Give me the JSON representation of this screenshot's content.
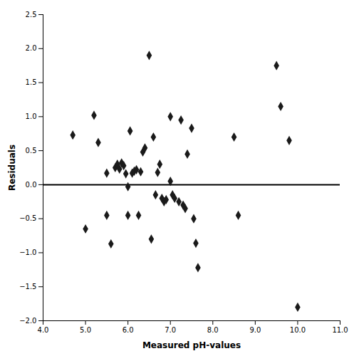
{
  "chart_data": {
    "type": "scatter",
    "x": [
      4.7,
      5.0,
      5.2,
      5.3,
      5.5,
      5.5,
      5.6,
      5.7,
      5.75,
      5.8,
      5.85,
      5.9,
      5.95,
      6.0,
      6.0,
      6.05,
      6.1,
      6.15,
      6.2,
      6.25,
      6.3,
      6.35,
      6.4,
      6.5,
      6.55,
      6.6,
      6.65,
      6.7,
      6.75,
      6.8,
      6.85,
      6.9,
      7.0,
      7.0,
      7.05,
      7.1,
      7.2,
      7.25,
      7.3,
      7.35,
      7.4,
      7.5,
      7.55,
      7.6,
      7.65,
      8.5,
      8.6,
      9.5,
      9.6,
      9.8,
      10.0
    ],
    "values": [
      0.73,
      -0.65,
      1.02,
      0.62,
      0.17,
      -0.45,
      -0.87,
      0.25,
      0.3,
      0.23,
      0.32,
      0.28,
      0.16,
      -0.03,
      -0.45,
      0.79,
      0.17,
      0.2,
      0.22,
      -0.45,
      0.19,
      0.48,
      0.54,
      1.9,
      -0.8,
      0.7,
      -0.15,
      0.18,
      0.3,
      -0.2,
      -0.25,
      -0.22,
      1.0,
      0.05,
      -0.15,
      -0.2,
      -0.25,
      0.95,
      -0.3,
      -0.35,
      0.45,
      0.83,
      -0.5,
      -0.86,
      -1.22,
      0.7,
      -0.45,
      1.75,
      1.15,
      0.65,
      -1.8
    ],
    "xlabel": "Measured pH-values",
    "ylabel": "Residuals",
    "xlim": [
      4,
      11
    ],
    "ylim": [
      -2,
      2.5
    ],
    "xticks": [
      4,
      5,
      6,
      7,
      8,
      9,
      10,
      11
    ],
    "yticks": [
      -2,
      -1.5,
      -1,
      -0.5,
      0,
      0.5,
      1,
      1.5,
      2,
      2.5
    ],
    "marker": "diamond",
    "color": "#1a1a1a",
    "hline": {
      "y": 0,
      "color": "#000000"
    },
    "grid": false
  }
}
